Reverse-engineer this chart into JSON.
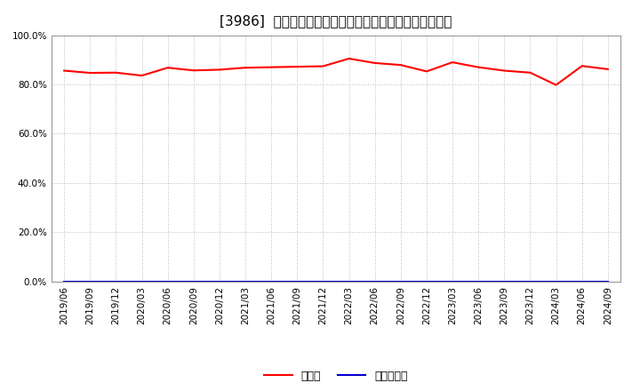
{
  "title": "[3986]  現預金、有利子負債の総資産に対する比率の推移",
  "x_labels": [
    "2019/06",
    "2019/09",
    "2019/12",
    "2020/03",
    "2020/06",
    "2020/09",
    "2020/12",
    "2021/03",
    "2021/06",
    "2021/09",
    "2021/12",
    "2022/03",
    "2022/06",
    "2022/09",
    "2022/12",
    "2023/03",
    "2023/06",
    "2023/09",
    "2023/12",
    "2024/03",
    "2024/06",
    "2024/09"
  ],
  "cash_values": [
    0.856,
    0.847,
    0.848,
    0.836,
    0.868,
    0.857,
    0.86,
    0.868,
    0.87,
    0.872,
    0.874,
    0.905,
    0.887,
    0.879,
    0.853,
    0.89,
    0.87,
    0.856,
    0.848,
    0.798,
    0.875,
    0.862
  ],
  "debt_values": [
    0.0,
    0.0,
    0.0,
    0.0,
    0.0,
    0.0,
    0.0,
    0.0,
    0.0,
    0.0,
    0.0,
    0.0,
    0.0,
    0.0,
    0.0,
    0.0,
    0.0,
    0.0,
    0.0,
    0.0,
    0.0,
    0.0
  ],
  "cash_color": "#ff0000",
  "debt_color": "#0000cd",
  "cash_label": "現預金",
  "debt_label": "有利子負債",
  "ylim": [
    0.0,
    1.0
  ],
  "yticks": [
    0.0,
    0.2,
    0.4,
    0.6,
    0.8,
    1.0
  ],
  "background_color": "#ffffff",
  "plot_bg_color": "#ffffff",
  "grid_color": "#bbbbbb",
  "title_fontsize": 11,
  "legend_fontsize": 9,
  "tick_fontsize": 7.5
}
